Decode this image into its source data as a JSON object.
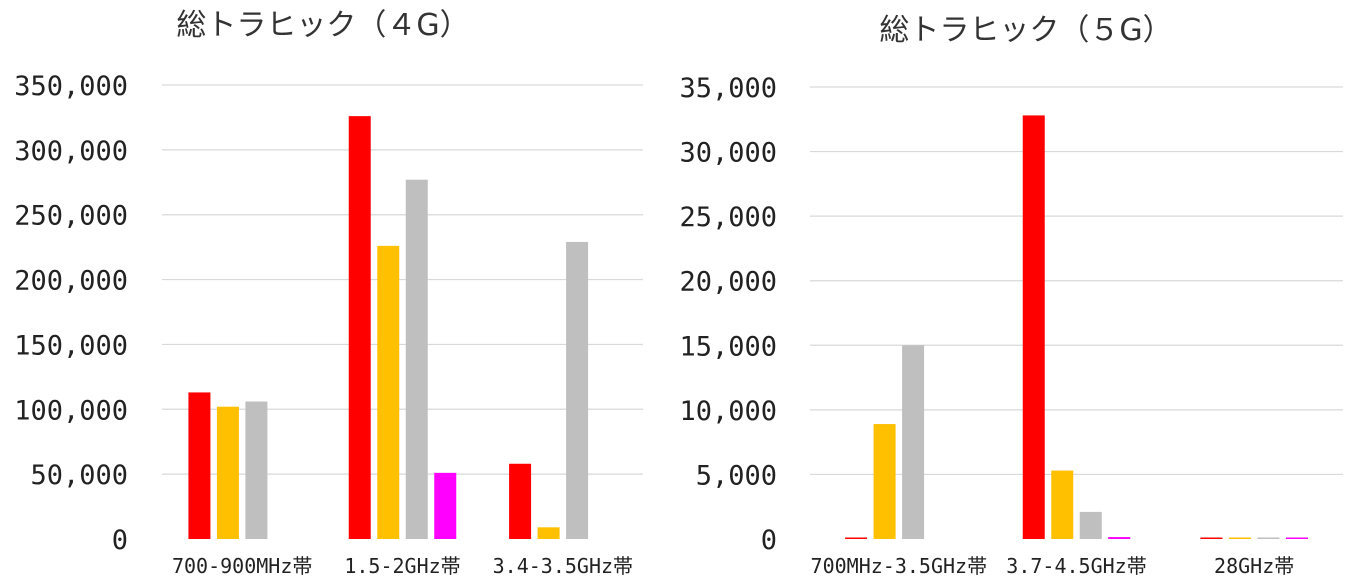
{
  "chart_data": [
    {
      "type": "bar",
      "title": "総トラヒック（４G）",
      "categories": [
        "700-900MHz帯",
        "1.5-2GHz帯",
        "3.4-3.5GHz帯"
      ],
      "series": [
        {
          "color": "#ff0000",
          "values": [
            113000,
            326000,
            58000
          ]
        },
        {
          "color": "#ffc000",
          "values": [
            102000,
            226000,
            9000
          ]
        },
        {
          "color": "#bfbfbf",
          "values": [
            106000,
            277000,
            229000
          ]
        },
        {
          "color": "#ff00ff",
          "values": [
            0,
            51000,
            0
          ]
        }
      ],
      "y_ticks": [
        "0",
        "50,000",
        "100,000",
        "150,000",
        "200,000",
        "250,000",
        "300,000",
        "350,000"
      ],
      "ylim": [
        0,
        350000
      ],
      "grid": true
    },
    {
      "type": "bar",
      "title": "総トラヒック（５G）",
      "categories": [
        "700MHz-3.5GHz帯",
        "3.7-4.5GHz帯",
        "28GHz帯"
      ],
      "series": [
        {
          "color": "#ff0000",
          "values": [
            50,
            32800,
            50
          ]
        },
        {
          "color": "#ffc000",
          "values": [
            8900,
            5300,
            20
          ]
        },
        {
          "color": "#bfbfbf",
          "values": [
            15000,
            2100,
            20
          ]
        },
        {
          "color": "#ff00ff",
          "values": [
            0,
            150,
            50
          ]
        }
      ],
      "y_ticks": [
        "0",
        "5,000",
        "10,000",
        "15,000",
        "20,000",
        "25,000",
        "30,000",
        "35,000"
      ],
      "ylim": [
        0,
        35000
      ],
      "grid": true
    }
  ]
}
